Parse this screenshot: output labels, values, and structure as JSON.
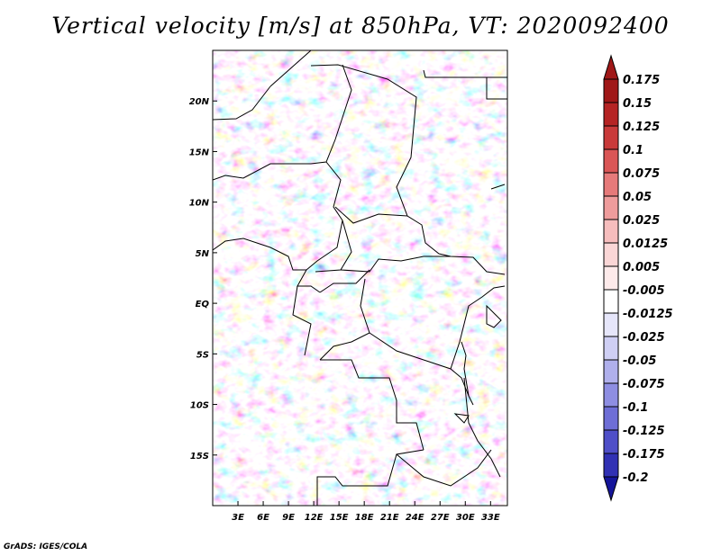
{
  "title": "Vertical velocity [m/s] at 850hPa, VT: 2020092400",
  "credit": "GrADS: IGES/COLA",
  "map": {
    "lon_range": [
      0,
      35
    ],
    "lat_range": [
      -20,
      25
    ],
    "lat_labels": [
      {
        "lat": 20,
        "label": "20N"
      },
      {
        "lat": 15,
        "label": "15N"
      },
      {
        "lat": 10,
        "label": "10N"
      },
      {
        "lat": 5,
        "label": "5N"
      },
      {
        "lat": 0,
        "label": "EQ"
      },
      {
        "lat": -5,
        "label": "5S"
      },
      {
        "lat": -10,
        "label": "10S"
      },
      {
        "lat": -15,
        "label": "15S"
      }
    ],
    "lon_labels": [
      {
        "lon": 3,
        "label": "3E"
      },
      {
        "lon": 6,
        "label": "6E"
      },
      {
        "lon": 9,
        "label": "9E"
      },
      {
        "lon": 12,
        "label": "12E"
      },
      {
        "lon": 15,
        "label": "15E"
      },
      {
        "lon": 18,
        "label": "18E"
      },
      {
        "lon": 21,
        "label": "21E"
      },
      {
        "lon": 24,
        "label": "24E"
      },
      {
        "lon": 27,
        "label": "27E"
      },
      {
        "lon": 30,
        "label": "30E"
      },
      {
        "lon": 33,
        "label": "33E"
      }
    ]
  },
  "colorbar": {
    "levels": [
      {
        "label": "0.175",
        "color": "#a01818"
      },
      {
        "label": "0.15",
        "color": "#b52424"
      },
      {
        "label": "0.125",
        "color": "#c93a3a"
      },
      {
        "label": "0.1",
        "color": "#da5656"
      },
      {
        "label": "0.075",
        "color": "#e67a7a"
      },
      {
        "label": "0.05",
        "color": "#ef9c9c"
      },
      {
        "label": "0.025",
        "color": "#f6bdbd"
      },
      {
        "label": "0.0125",
        "color": "#fad6d6"
      },
      {
        "label": "0.005",
        "color": "#fdeaea"
      },
      {
        "label": "-0.005",
        "color": "#ffffff"
      },
      {
        "label": "-0.0125",
        "color": "#e6e6fa"
      },
      {
        "label": "-0.025",
        "color": "#cfcff4"
      },
      {
        "label": "-0.05",
        "color": "#b0b0ec"
      },
      {
        "label": "-0.075",
        "color": "#8e8ee2"
      },
      {
        "label": "-0.1",
        "color": "#6e6ed6"
      },
      {
        "label": "-0.125",
        "color": "#4f4fc8"
      },
      {
        "label": "-0.175",
        "color": "#3131b4"
      },
      {
        "label": "-0.2",
        "color": "#15159a"
      }
    ],
    "top_color": "#a01818",
    "bottom_color": "#15159a"
  }
}
